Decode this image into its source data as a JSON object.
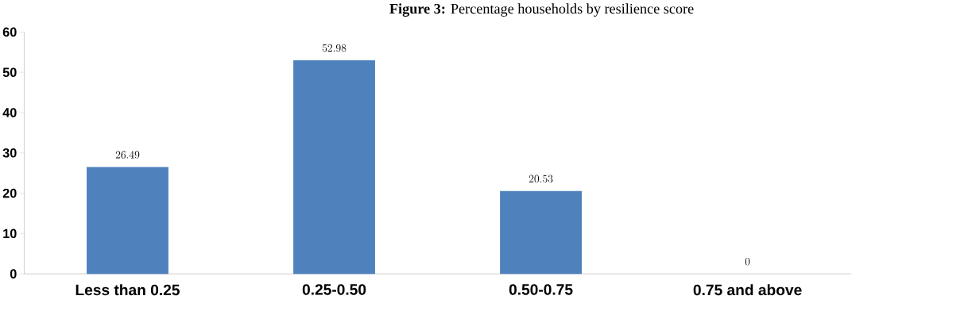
{
  "chart_data": {
    "type": "bar",
    "title": "**Figure 3:** Percentage households by resilience score",
    "categories": [
      "Less than 0.25",
      "0.25-0.50",
      "0.50-0.75",
      "0.75 and above"
    ],
    "values": [
      26.49,
      52.98,
      20.53,
      0
    ],
    "color": "#4f81bd",
    "ylim": [
      0,
      60
    ],
    "yticks": [
      0,
      10,
      20,
      30,
      40,
      50,
      60
    ],
    "grid": false,
    "data_labels": true
  }
}
